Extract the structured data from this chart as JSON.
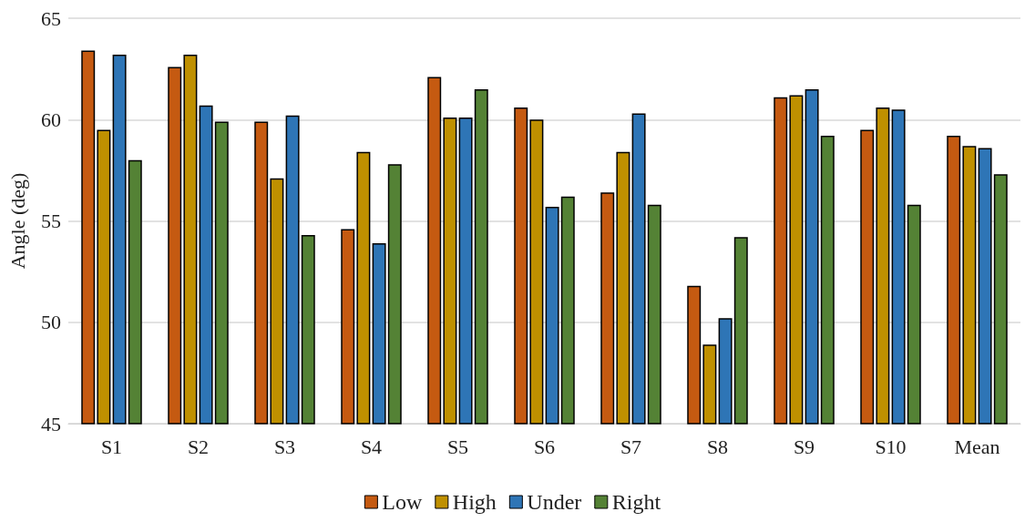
{
  "chart_data": {
    "type": "bar",
    "ylabel": "Angle (deg)",
    "categories": [
      "S1",
      "S2",
      "S3",
      "S4",
      "S5",
      "S6",
      "S7",
      "S8",
      "S9",
      "S10",
      "Mean"
    ],
    "series": [
      {
        "name": "Low",
        "color": "#c55a11",
        "values": [
          63.4,
          62.6,
          59.9,
          54.6,
          62.1,
          60.6,
          56.4,
          51.8,
          61.1,
          59.5,
          59.2
        ]
      },
      {
        "name": "High",
        "color": "#bf9000",
        "values": [
          59.5,
          63.2,
          57.1,
          58.4,
          60.1,
          60.0,
          58.4,
          48.9,
          61.2,
          60.6,
          58.7
        ]
      },
      {
        "name": "Under",
        "color": "#2e75b6",
        "values": [
          63.2,
          60.7,
          60.2,
          53.9,
          60.1,
          55.7,
          60.3,
          50.2,
          61.5,
          60.5,
          58.6
        ]
      },
      {
        "name": "Right",
        "color": "#548235",
        "values": [
          58.0,
          59.9,
          54.3,
          57.8,
          61.5,
          56.2,
          55.8,
          54.2,
          59.2,
          55.8,
          57.3
        ]
      }
    ],
    "ylim": [
      45,
      65
    ],
    "yticks": [
      45,
      50,
      55,
      60,
      65
    ],
    "grid": "y",
    "legend": "bottom"
  }
}
